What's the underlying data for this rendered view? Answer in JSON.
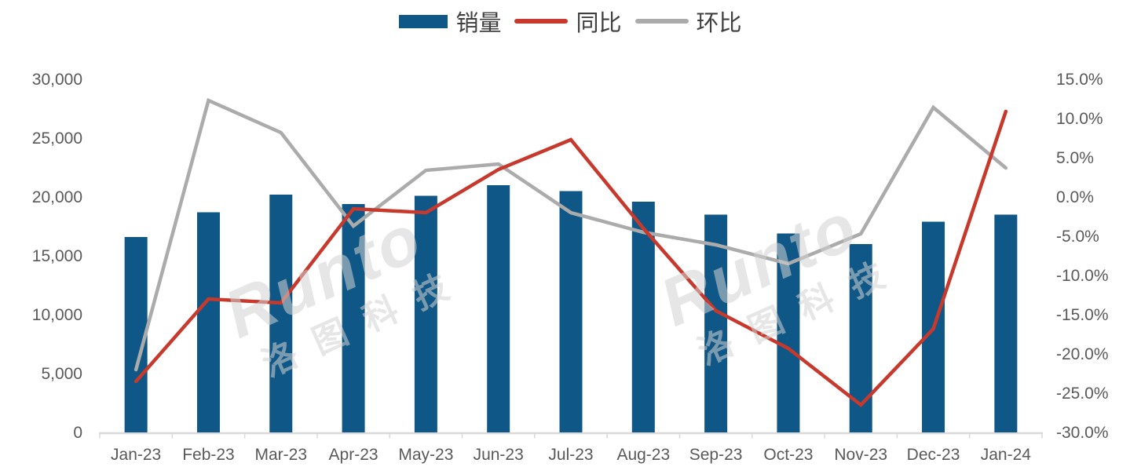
{
  "legend": {
    "items": [
      {
        "label": "销量",
        "type": "bar",
        "color": "#0F5786"
      },
      {
        "label": "同比",
        "type": "line",
        "color": "#C6392C"
      },
      {
        "label": "环比",
        "type": "line",
        "color": "#ABABAB"
      }
    ]
  },
  "watermark": {
    "brand": "Runto",
    "cn": "洛图科技"
  },
  "colors": {
    "bar": "#0F5786",
    "yoy_line": "#C6392C",
    "mom_line": "#ABABAB",
    "axis_text": "#595959",
    "axis_line": "#D9D9D9",
    "legend_text": "#3F3F3F"
  },
  "chart_data": {
    "type": "combo_bar_line",
    "title": "",
    "legend_position": "top-center",
    "grid": false,
    "categories": [
      "Jan-23",
      "Feb-23",
      "Mar-23",
      "Apr-23",
      "May-23",
      "Jun-23",
      "Jul-23",
      "Aug-23",
      "Sep-23",
      "Oct-23",
      "Nov-23",
      "Dec-23",
      "Jan-24"
    ],
    "series": [
      {
        "name": "销量",
        "type": "bar",
        "axis": "left",
        "color": "#0F5786",
        "values": [
          16600,
          18700,
          20200,
          19400,
          20100,
          21000,
          20500,
          19600,
          18500,
          16900,
          16000,
          17900,
          18500
        ]
      },
      {
        "name": "同比",
        "type": "line",
        "axis": "right",
        "color": "#C6392C",
        "unit": "%",
        "values": [
          -23.5,
          -13.0,
          -13.5,
          -1.5,
          -2.0,
          3.5,
          7.3,
          -4.0,
          -14.5,
          -19.3,
          -26.5,
          -16.8,
          10.9
        ]
      },
      {
        "name": "环比",
        "type": "line",
        "axis": "right",
        "color": "#ABABAB",
        "unit": "%",
        "values": [
          -22.0,
          12.3,
          8.2,
          -3.7,
          3.4,
          4.2,
          -2.0,
          -4.5,
          -6.1,
          -8.5,
          -4.7,
          11.4,
          3.7
        ]
      }
    ],
    "left_axis": {
      "min": 0,
      "max": 30000,
      "step": 5000,
      "tick_labels_bottom_up": [
        "0",
        "5,000",
        "10,000",
        "15,000",
        "20,000",
        "25,000",
        "30,000"
      ]
    },
    "right_axis": {
      "min": -30,
      "max": 15,
      "step": 5,
      "tick_labels_top_down": [
        "15.0%",
        "10.0%",
        "5.0%",
        "0.0%",
        "-5.0%",
        "-10.0%",
        "-15.0%",
        "-20.0%",
        "-25.0%",
        "-30.0%"
      ]
    }
  }
}
